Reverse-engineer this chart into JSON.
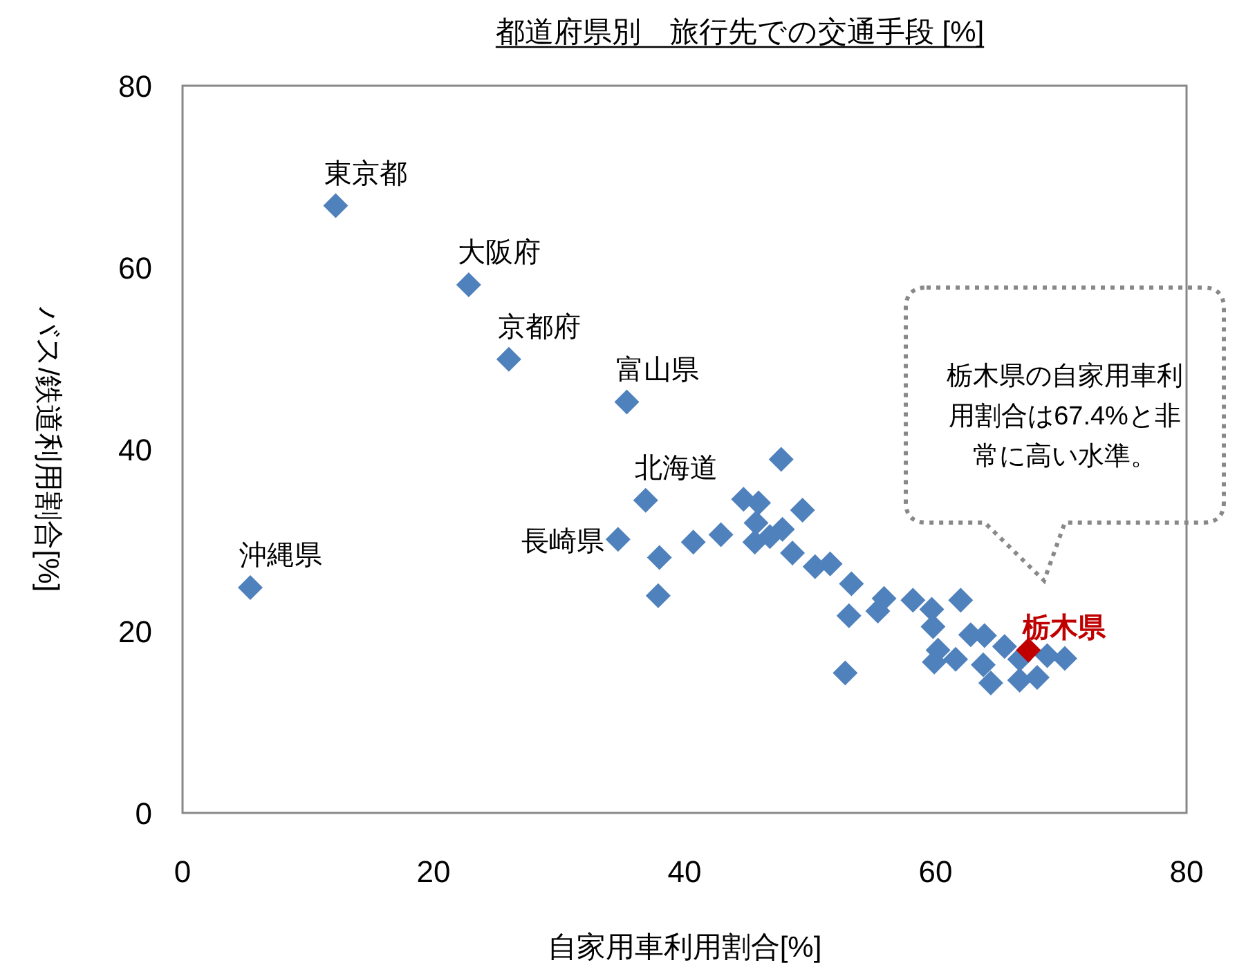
{
  "chart_data": {
    "type": "scatter",
    "title": "都道府県別　旅行先での交通手段 [%]",
    "xlabel": "自家用車利用割合[%]",
    "ylabel": "バス/鉄道利用割合[%]",
    "xlim": [
      0,
      80
    ],
    "ylim": [
      0,
      80
    ],
    "xticks": [
      0,
      20,
      40,
      60,
      80
    ],
    "yticks": [
      0,
      20,
      40,
      60,
      80
    ],
    "grid": false,
    "marker": "diamond",
    "series": [
      {
        "color": "#4f81bd",
        "x": [
          5.4,
          12.2,
          22.8,
          26.0,
          35.4,
          36.9,
          34.7,
          38.0,
          37.9,
          40.7,
          42.9,
          47.7,
          44.7,
          45.9,
          45.7,
          45.6,
          46.8,
          47.8,
          49.4,
          48.6,
          50.4,
          51.6,
          53.3,
          53.1,
          55.4,
          55.9,
          52.8,
          58.2,
          59.7,
          59.8,
          62.0,
          60.2,
          59.9,
          61.6,
          62.8,
          63.9,
          63.8,
          64.4,
          65.5,
          66.7,
          66.7,
          68.1,
          68.9,
          70.3
        ],
        "values": [
          24.8,
          66.8,
          58.1,
          49.9,
          45.2,
          34.4,
          30.1,
          28.1,
          23.9,
          29.8,
          30.6,
          38.9,
          34.5,
          34.1,
          31.9,
          29.8,
          30.4,
          31.2,
          33.3,
          28.6,
          27.1,
          27.4,
          25.2,
          21.7,
          22.2,
          23.6,
          15.4,
          23.4,
          22.4,
          20.5,
          23.4,
          17.9,
          16.6,
          16.9,
          19.6,
          19.5,
          16.3,
          14.3,
          18.3,
          16.9,
          14.6,
          14.9,
          17.3,
          17.0
        ]
      },
      {
        "color": "#c00000",
        "x": [
          67.4
        ],
        "values": [
          17.9
        ]
      }
    ],
    "annotations": [
      {
        "text": "沖縄県",
        "x": 5.4,
        "y": 24.8
      },
      {
        "text": "東京都",
        "x": 12.2,
        "y": 66.8
      },
      {
        "text": "大阪府",
        "x": 22.8,
        "y": 58.1
      },
      {
        "text": "京都府",
        "x": 26.0,
        "y": 49.9
      },
      {
        "text": "富山県",
        "x": 35.4,
        "y": 45.2
      },
      {
        "text": "北海道",
        "x": 36.9,
        "y": 34.4
      },
      {
        "text": "長崎県",
        "x": 34.7,
        "y": 30.1
      },
      {
        "text": "栃木県",
        "x": 67.4,
        "y": 17.9
      },
      "栃木県の自家用車利用割合は67.4%と非常に高い水準。"
    ]
  }
}
